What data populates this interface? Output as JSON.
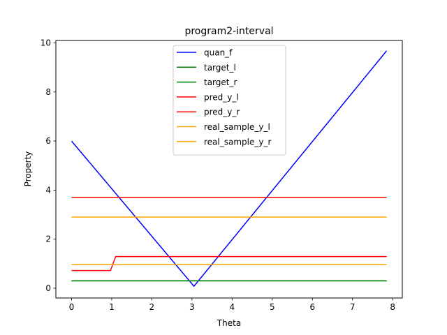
{
  "chart_data": {
    "type": "line",
    "title": "program2-interval",
    "xlabel": "Theta",
    "ylabel": "Property",
    "xlim": [
      -0.39,
      8.24
    ],
    "ylim": [
      -0.4,
      10.1
    ],
    "xticks": [
      0,
      1,
      2,
      3,
      4,
      5,
      6,
      7,
      8
    ],
    "yticks": [
      0,
      2,
      4,
      6,
      8,
      10
    ],
    "grid": false,
    "legend_position": "top-center",
    "series": [
      {
        "name": "quan_f",
        "color": "#0000ff",
        "x": [
          0,
          3.05,
          7.85
        ],
        "y": [
          6.0,
          0.08,
          9.68
        ]
      },
      {
        "name": "target_l",
        "color": "#008000",
        "x": [
          0,
          7.85
        ],
        "y": [
          0.3,
          0.3
        ]
      },
      {
        "name": "target_r",
        "color": "#008000",
        "x": [
          0,
          7.85
        ],
        "y": [
          0.3,
          0.3
        ]
      },
      {
        "name": "pred_y_l",
        "color": "#ff0000",
        "x": [
          0,
          0.97,
          1.1,
          7.85
        ],
        "y": [
          0.72,
          0.72,
          1.29,
          1.29
        ]
      },
      {
        "name": "pred_y_r",
        "color": "#ff0000",
        "x": [
          0,
          7.85
        ],
        "y": [
          3.7,
          3.7
        ]
      },
      {
        "name": "real_sample_y_l",
        "color": "#ffa500",
        "x": [
          0,
          7.85
        ],
        "y": [
          0.96,
          0.96
        ]
      },
      {
        "name": "real_sample_y_r",
        "color": "#ffa500",
        "x": [
          0,
          7.85
        ],
        "y": [
          2.9,
          2.9
        ]
      }
    ]
  }
}
